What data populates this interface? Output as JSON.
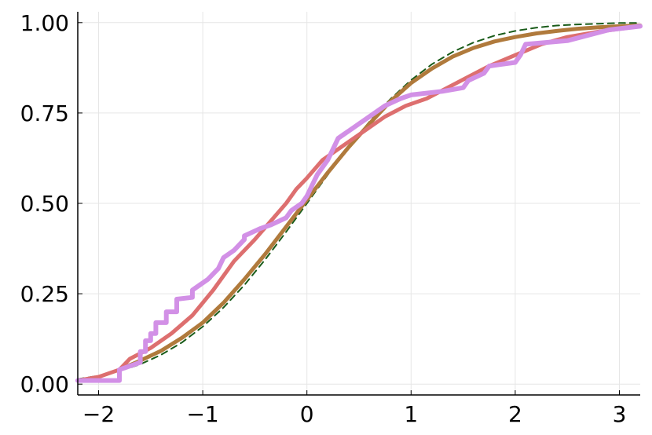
{
  "chart_data": {
    "type": "line",
    "title": "",
    "xlabel": "",
    "ylabel": "",
    "xlim": [
      -2.2,
      3.2
    ],
    "ylim": [
      -0.03,
      1.03
    ],
    "grid": true,
    "legend": "none",
    "x_ticks": [
      {
        "value": -2,
        "label": "−2"
      },
      {
        "value": -1,
        "label": "−1"
      },
      {
        "value": 0,
        "label": "0"
      },
      {
        "value": 1,
        "label": "1"
      },
      {
        "value": 2,
        "label": "2"
      },
      {
        "value": 3,
        "label": "3"
      }
    ],
    "y_ticks": [
      {
        "value": 0.0,
        "label": "0.00"
      },
      {
        "value": 0.25,
        "label": "0.25"
      },
      {
        "value": 0.5,
        "label": "0.50"
      },
      {
        "value": 0.75,
        "label": "0.75"
      },
      {
        "value": 1.0,
        "label": "1.00"
      }
    ],
    "series": [
      {
        "color": "#1a5c1a",
        "dash": "dashed",
        "width": 2,
        "x": [
          -2.2,
          -2.0,
          -1.8,
          -1.6,
          -1.4,
          -1.2,
          -1.0,
          -0.8,
          -0.6,
          -0.4,
          -0.2,
          0.0,
          0.2,
          0.4,
          0.6,
          0.8,
          1.0,
          1.2,
          1.4,
          1.6,
          1.8,
          2.0,
          2.2,
          2.4,
          2.6,
          2.8,
          3.0,
          3.2
        ],
        "y": [
          0.014,
          0.023,
          0.036,
          0.055,
          0.081,
          0.115,
          0.159,
          0.212,
          0.274,
          0.345,
          0.421,
          0.5,
          0.579,
          0.655,
          0.726,
          0.788,
          0.841,
          0.885,
          0.919,
          0.945,
          0.964,
          0.977,
          0.986,
          0.992,
          0.995,
          0.997,
          0.999,
          0.999
        ]
      },
      {
        "color": "#b07a3c",
        "dash": "solid",
        "width": 5,
        "x": [
          -1.8,
          -1.6,
          -1.4,
          -1.2,
          -1.0,
          -0.8,
          -0.6,
          -0.4,
          -0.2,
          0.0,
          0.2,
          0.4,
          0.6,
          0.8,
          1.0,
          1.2,
          1.4,
          1.6,
          1.8,
          2.0,
          2.2,
          2.4,
          2.6,
          2.8,
          3.0,
          3.2
        ],
        "y": [
          0.04,
          0.065,
          0.092,
          0.128,
          0.17,
          0.225,
          0.29,
          0.36,
          0.435,
          0.51,
          0.585,
          0.655,
          0.72,
          0.782,
          0.833,
          0.873,
          0.906,
          0.93,
          0.948,
          0.96,
          0.97,
          0.977,
          0.983,
          0.987,
          0.99,
          0.992
        ]
      },
      {
        "color": "#dd6f6f",
        "dash": "solid",
        "width": 5,
        "x": [
          -2.2,
          -2.0,
          -1.8,
          -1.7,
          -1.5,
          -1.3,
          -1.1,
          -0.9,
          -0.7,
          -0.5,
          -0.35,
          -0.2,
          -0.1,
          0.0,
          0.15,
          0.35,
          0.55,
          0.75,
          0.95,
          1.15,
          1.35,
          1.55,
          1.75,
          2.0,
          2.25,
          2.5,
          2.8,
          3.2
        ],
        "y": [
          0.01,
          0.02,
          0.04,
          0.07,
          0.1,
          0.14,
          0.19,
          0.26,
          0.34,
          0.4,
          0.45,
          0.5,
          0.54,
          0.57,
          0.62,
          0.66,
          0.7,
          0.74,
          0.77,
          0.79,
          0.82,
          0.85,
          0.88,
          0.91,
          0.94,
          0.96,
          0.975,
          0.99
        ]
      },
      {
        "color": "#d290e6",
        "dash": "solid",
        "width": 6,
        "x": [
          -2.2,
          -1.8,
          -1.8,
          -1.6,
          -1.6,
          -1.55,
          -1.55,
          -1.5,
          -1.5,
          -1.45,
          -1.45,
          -1.35,
          -1.35,
          -1.25,
          -1.25,
          -1.1,
          -1.1,
          -0.95,
          -0.85,
          -0.8,
          -0.7,
          -0.6,
          -0.6,
          -0.45,
          -0.35,
          -0.2,
          -0.15,
          -0.05,
          0.0,
          0.05,
          0.1,
          0.2,
          0.25,
          0.3,
          0.35,
          0.45,
          0.5,
          0.6,
          0.75,
          0.9,
          1.0,
          1.3,
          1.5,
          1.55,
          1.7,
          1.75,
          2.0,
          2.05,
          2.1,
          2.5,
          2.9,
          3.2
        ],
        "y": [
          0.01,
          0.01,
          0.04,
          0.06,
          0.09,
          0.09,
          0.12,
          0.12,
          0.14,
          0.14,
          0.17,
          0.17,
          0.2,
          0.2,
          0.235,
          0.24,
          0.26,
          0.29,
          0.32,
          0.35,
          0.37,
          0.4,
          0.41,
          0.43,
          0.44,
          0.46,
          0.48,
          0.5,
          0.52,
          0.55,
          0.58,
          0.62,
          0.65,
          0.68,
          0.69,
          0.71,
          0.72,
          0.74,
          0.77,
          0.79,
          0.8,
          0.81,
          0.82,
          0.84,
          0.86,
          0.88,
          0.89,
          0.91,
          0.94,
          0.95,
          0.98,
          0.99
        ]
      }
    ]
  }
}
